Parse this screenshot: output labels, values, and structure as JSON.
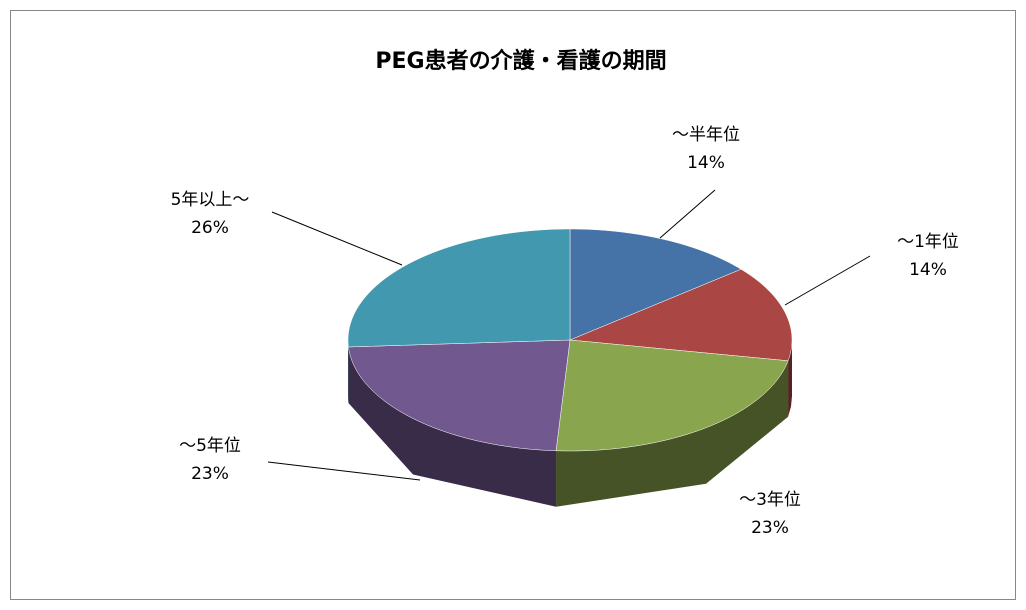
{
  "chart_data": {
    "type": "pie3d",
    "title": "PEG患者の介護・看護の期間",
    "categories": [
      "～半年位",
      "～1年位",
      "～3年位",
      "～5年位",
      "5年以上～"
    ],
    "values": [
      14,
      14,
      23,
      23,
      26
    ],
    "value_labels": [
      "14%",
      "14%",
      "23%",
      "23%",
      "26%"
    ],
    "colors": [
      "#4572a7",
      "#aa4643",
      "#89a54e",
      "#71588f",
      "#4198af"
    ]
  }
}
